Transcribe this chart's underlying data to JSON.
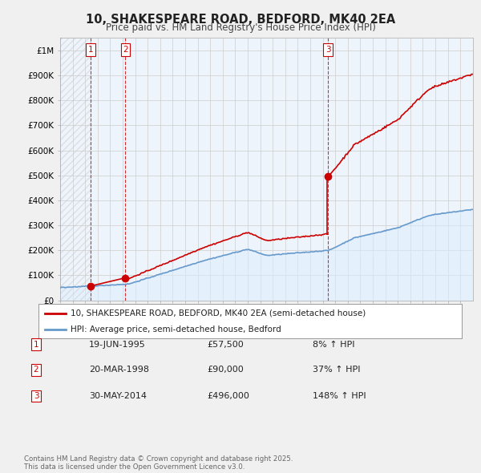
{
  "title": "10, SHAKESPEARE ROAD, BEDFORD, MK40 2EA",
  "subtitle": "Price paid vs. HM Land Registry's House Price Index (HPI)",
  "property_label": "10, SHAKESPEARE ROAD, BEDFORD, MK40 2EA (semi-detached house)",
  "hpi_label": "HPI: Average price, semi-detached house, Bedford",
  "property_color": "#cc0000",
  "hpi_color": "#6699cc",
  "hpi_fill_color": "#ddeeff",
  "transactions": [
    {
      "num": 1,
      "date": "19-JUN-1995",
      "price": 57500,
      "hpi_pct": "8% ↑ HPI",
      "year": 1995.46
    },
    {
      "num": 2,
      "date": "20-MAR-1998",
      "price": 90000,
      "hpi_pct": "37% ↑ HPI",
      "year": 1998.22
    },
    {
      "num": 3,
      "date": "30-MAY-2014",
      "price": 496000,
      "hpi_pct": "148% ↑ HPI",
      "year": 2014.41
    }
  ],
  "footer": "Contains HM Land Registry data © Crown copyright and database right 2025.\nThis data is licensed under the Open Government Licence v3.0.",
  "ylim": [
    0,
    1050000
  ],
  "yticks": [
    0,
    100000,
    200000,
    300000,
    400000,
    500000,
    600000,
    700000,
    800000,
    900000,
    1000000
  ],
  "ytick_labels": [
    "£0",
    "£100K",
    "£200K",
    "£300K",
    "£400K",
    "£500K",
    "£600K",
    "£700K",
    "£800K",
    "£900K",
    "£1M"
  ],
  "background_color": "#f0f0f0",
  "plot_bg_color": "#eef4fb"
}
